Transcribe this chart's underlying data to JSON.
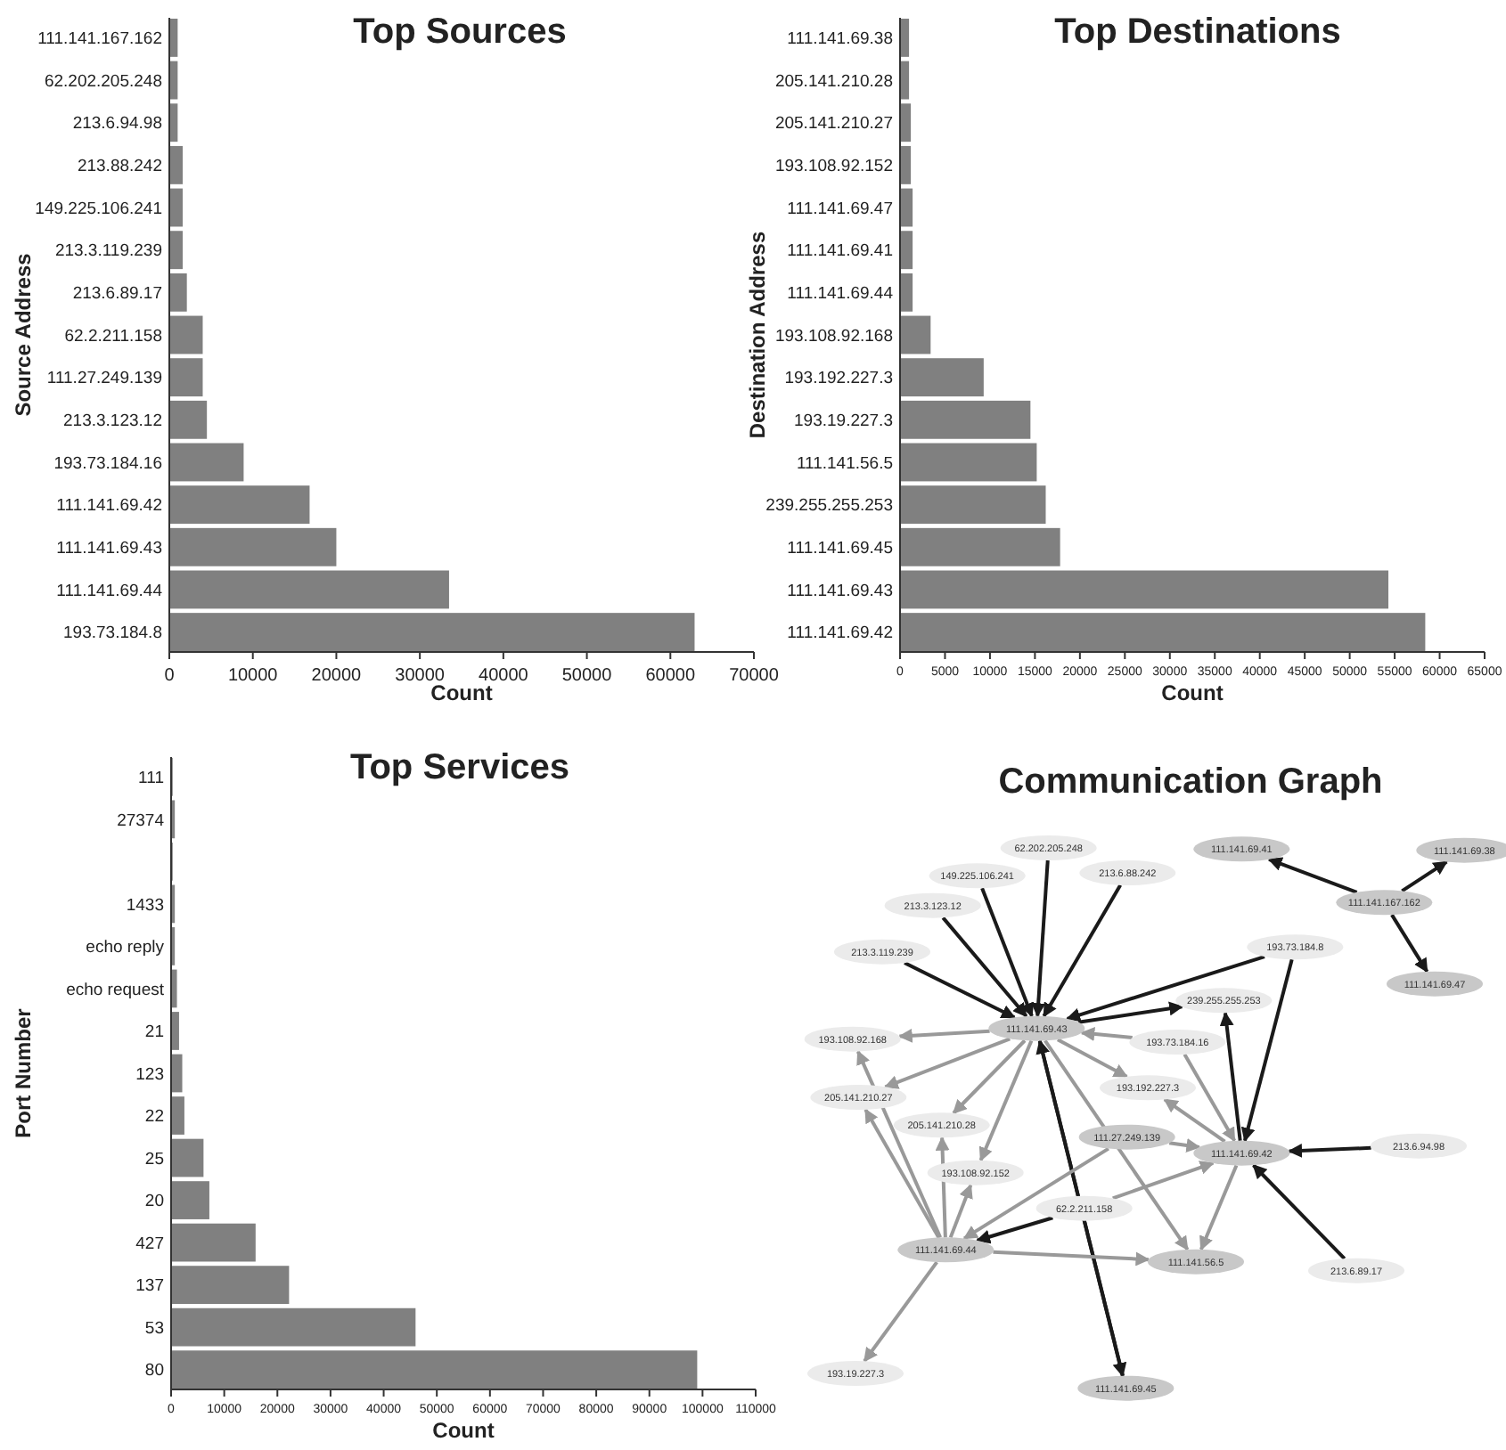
{
  "chart_data": [
    {
      "type": "bar",
      "orientation": "horizontal",
      "title": "Top Sources",
      "xlabel": "Count",
      "ylabel": "Source Address",
      "color": "#808080",
      "categories": [
        "111.141.167.162",
        "62.202.205.248",
        "213.6.94.98",
        "213.88.242",
        "149.225.106.241",
        "213.3.119.239",
        "213.6.89.17",
        "62.2.211.158",
        "111.27.249.139",
        "213.3.123.12",
        "193.73.184.16",
        "111.141.69.42",
        "111.141.69.43",
        "111.141.69.44",
        "193.73.184.8"
      ],
      "values": [
        1000,
        1000,
        1000,
        1600,
        1600,
        1600,
        2100,
        4000,
        4000,
        4500,
        8900,
        16800,
        20000,
        33500,
        62900
      ],
      "xlim": [
        0,
        70000
      ],
      "xticks": [
        0,
        10000,
        20000,
        30000,
        40000,
        50000,
        60000,
        70000
      ]
    },
    {
      "type": "bar",
      "orientation": "horizontal",
      "title": "Top Destinations",
      "xlabel": "Count",
      "ylabel": "Destination Address",
      "color": "#808080",
      "categories": [
        "111.141.69.38",
        "205.141.210.28",
        "205.141.210.27",
        "193.108.92.152",
        "111.141.69.47",
        "111.141.69.41",
        "111.141.69.44",
        "193.108.92.168",
        "193.192.227.3",
        "193.19.227.3",
        "111.141.56.5",
        "239.255.255.253",
        "111.141.69.45",
        "111.141.69.43",
        "111.141.69.42"
      ],
      "values": [
        1000,
        1000,
        1200,
        1200,
        1400,
        1400,
        1400,
        3400,
        9300,
        14500,
        15200,
        16200,
        17800,
        54300,
        58400
      ],
      "xlim": [
        0,
        65000
      ],
      "xticks": [
        0,
        5000,
        10000,
        15000,
        20000,
        25000,
        30000,
        35000,
        40000,
        45000,
        50000,
        55000,
        60000,
        65000
      ]
    },
    {
      "type": "bar",
      "orientation": "horizontal",
      "title": "Top Services",
      "xlabel": "Count",
      "ylabel": "Port Number",
      "color": "#808080",
      "categories": [
        "111",
        "27374",
        null,
        "1433",
        "echo reply",
        "echo request",
        "21",
        "123",
        "22",
        "25",
        "20",
        "427",
        "137",
        "53",
        "80"
      ],
      "values": [
        300,
        700,
        300,
        700,
        700,
        1100,
        1500,
        2100,
        2500,
        6100,
        7200,
        15900,
        22200,
        46000,
        99000
      ],
      "xlim": [
        0,
        110000
      ],
      "xticks": [
        0,
        10000,
        20000,
        30000,
        40000,
        50000,
        60000,
        70000,
        80000,
        90000,
        100000,
        110000
      ]
    },
    {
      "type": "other",
      "title": "Communication Graph",
      "annotations": [
        "111.141.69.41",
        "111.141.69.38",
        "111.141.167.162",
        "111.141.69.47",
        "62.202.205.248",
        "149.225.106.241",
        "213.6.88.242",
        "213.3.123.12",
        "213.3.119.239",
        "193.73.184.8",
        "239.255.255.253",
        "111.141.69.43",
        "193.108.92.168",
        "193.73.184.16",
        "205.141.210.27",
        "193.192.227.3",
        "205.141.210.28",
        "111.27.249.139",
        "111.141.69.42",
        "213.6.94.98",
        "193.108.92.152",
        "62.2.211.158",
        "111.141.69.44",
        "111.141.56.5",
        "213.6.89.17",
        "193.19.227.3",
        "111.141.69.45"
      ]
    }
  ]
}
